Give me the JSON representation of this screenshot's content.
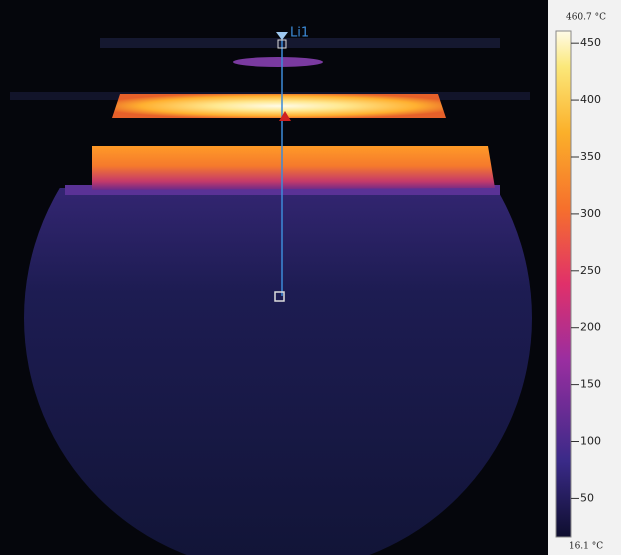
{
  "measurement_line": {
    "label": "Li1"
  },
  "colorbar": {
    "max": {
      "value": 460.7,
      "label": "460.7 °C"
    },
    "min": {
      "value": 16.1,
      "label": "16.1 °C"
    },
    "ticks": [
      450,
      400,
      350,
      300,
      250,
      200,
      150,
      100,
      50
    ]
  }
}
